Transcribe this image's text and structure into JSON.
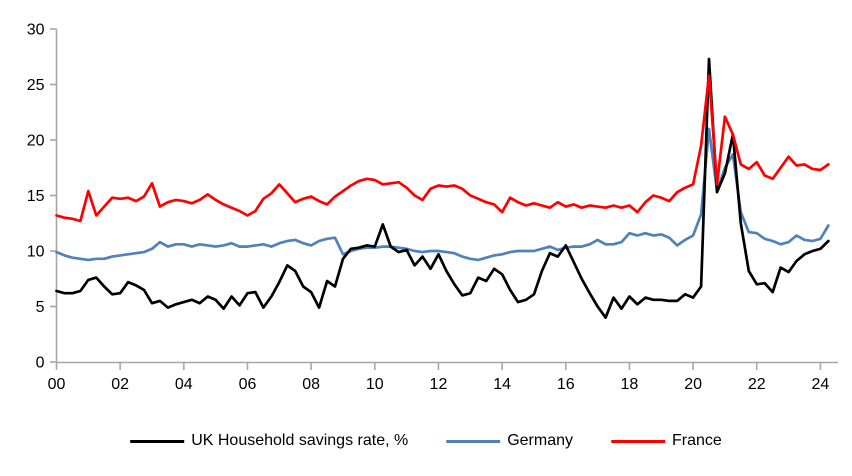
{
  "chart_data": {
    "type": "line",
    "title": "",
    "frequency": "quarterly",
    "start_period": "2000Q1",
    "end_period": "2024Q2",
    "grid": false,
    "legend_position": "bottom",
    "x_axis": {
      "tick_labels": [
        "00",
        "02",
        "04",
        "06",
        "08",
        "10",
        "12",
        "14",
        "16",
        "18",
        "20",
        "22",
        "24"
      ],
      "tick_years": [
        0,
        2,
        4,
        6,
        8,
        10,
        12,
        14,
        16,
        18,
        20,
        22,
        24
      ],
      "range_years": [
        0,
        24.6
      ]
    },
    "y_axis": {
      "ticks": [
        0,
        5,
        10,
        15,
        20,
        25,
        30
      ],
      "range": [
        0,
        30
      ]
    },
    "series": [
      {
        "name": "UK Household savings rate, %",
        "color": "#000000",
        "values": [
          6.4,
          6.2,
          6.2,
          6.4,
          7.4,
          7.6,
          6.8,
          6.1,
          6.2,
          7.2,
          6.9,
          6.5,
          5.3,
          5.5,
          4.9,
          5.2,
          5.4,
          5.6,
          5.3,
          5.9,
          5.6,
          4.8,
          5.9,
          5.1,
          6.2,
          6.3,
          4.9,
          5.9,
          7.2,
          8.7,
          8.2,
          6.8,
          6.3,
          4.9,
          7.3,
          6.8,
          9.3,
          10.2,
          10.3,
          10.5,
          10.4,
          12.4,
          10.4,
          9.9,
          10.1,
          8.7,
          9.5,
          8.4,
          9.7,
          8.2,
          7.0,
          6.0,
          6.2,
          7.6,
          7.3,
          8.4,
          7.9,
          6.5,
          5.4,
          5.6,
          6.1,
          8.2,
          9.8,
          9.5,
          10.5,
          9.0,
          7.5,
          6.2,
          5.0,
          4.0,
          5.8,
          4.8,
          5.9,
          5.2,
          5.8,
          5.6,
          5.6,
          5.5,
          5.5,
          6.1,
          5.8,
          6.8,
          27.3,
          15.3,
          17.0,
          20.5,
          12.5,
          8.2,
          7.0,
          7.1,
          6.3,
          8.5,
          8.1,
          9.1,
          9.7,
          10.0,
          10.2,
          10.9
        ]
      },
      {
        "name": "Germany",
        "color": "#4F81BD",
        "values": [
          9.9,
          9.6,
          9.4,
          9.3,
          9.2,
          9.3,
          9.3,
          9.5,
          9.6,
          9.7,
          9.8,
          9.9,
          10.2,
          10.8,
          10.4,
          10.6,
          10.6,
          10.4,
          10.6,
          10.5,
          10.4,
          10.5,
          10.7,
          10.4,
          10.4,
          10.5,
          10.6,
          10.4,
          10.7,
          10.9,
          11.0,
          10.7,
          10.5,
          10.9,
          11.1,
          11.2,
          9.7,
          10.0,
          10.2,
          10.3,
          10.3,
          10.4,
          10.4,
          10.3,
          10.2,
          10.0,
          9.9,
          10.0,
          10.0,
          9.9,
          9.8,
          9.5,
          9.3,
          9.2,
          9.4,
          9.6,
          9.7,
          9.9,
          10.0,
          10.0,
          10.0,
          10.2,
          10.4,
          10.1,
          10.3,
          10.4,
          10.4,
          10.6,
          11.0,
          10.6,
          10.6,
          10.8,
          11.6,
          11.4,
          11.6,
          11.4,
          11.5,
          11.2,
          10.5,
          11.0,
          11.4,
          13.3,
          21.0,
          15.4,
          17.5,
          18.7,
          13.5,
          11.7,
          11.6,
          11.1,
          10.9,
          10.6,
          10.8,
          11.4,
          11.0,
          10.9,
          11.1,
          12.3
        ]
      },
      {
        "name": "France",
        "color": "#FF0000",
        "values": [
          13.2,
          13.0,
          12.9,
          12.7,
          15.4,
          13.2,
          14.0,
          14.8,
          14.7,
          14.8,
          14.5,
          14.9,
          16.1,
          14.0,
          14.4,
          14.6,
          14.5,
          14.3,
          14.6,
          15.1,
          14.6,
          14.2,
          13.9,
          13.6,
          13.2,
          13.6,
          14.7,
          15.2,
          16.0,
          15.2,
          14.4,
          14.7,
          14.9,
          14.5,
          14.2,
          14.9,
          15.4,
          15.9,
          16.3,
          16.5,
          16.4,
          16.0,
          16.1,
          16.2,
          15.7,
          15.0,
          14.6,
          15.6,
          15.9,
          15.8,
          15.9,
          15.6,
          15.0,
          14.7,
          14.4,
          14.2,
          13.5,
          14.8,
          14.4,
          14.1,
          14.3,
          14.1,
          13.9,
          14.4,
          14.0,
          14.2,
          13.9,
          14.1,
          14.0,
          13.9,
          14.1,
          13.9,
          14.1,
          13.5,
          14.4,
          15.0,
          14.8,
          14.5,
          15.3,
          15.7,
          16.0,
          19.5,
          25.8,
          16.0,
          22.1,
          20.5,
          17.8,
          17.4,
          18.0,
          16.8,
          16.5,
          17.5,
          18.5,
          17.7,
          17.8,
          17.4,
          17.3,
          17.8
        ]
      }
    ]
  },
  "colors": {
    "axis": "#A6A6A6",
    "tick_text": "#000000",
    "background": "#FFFFFF"
  }
}
